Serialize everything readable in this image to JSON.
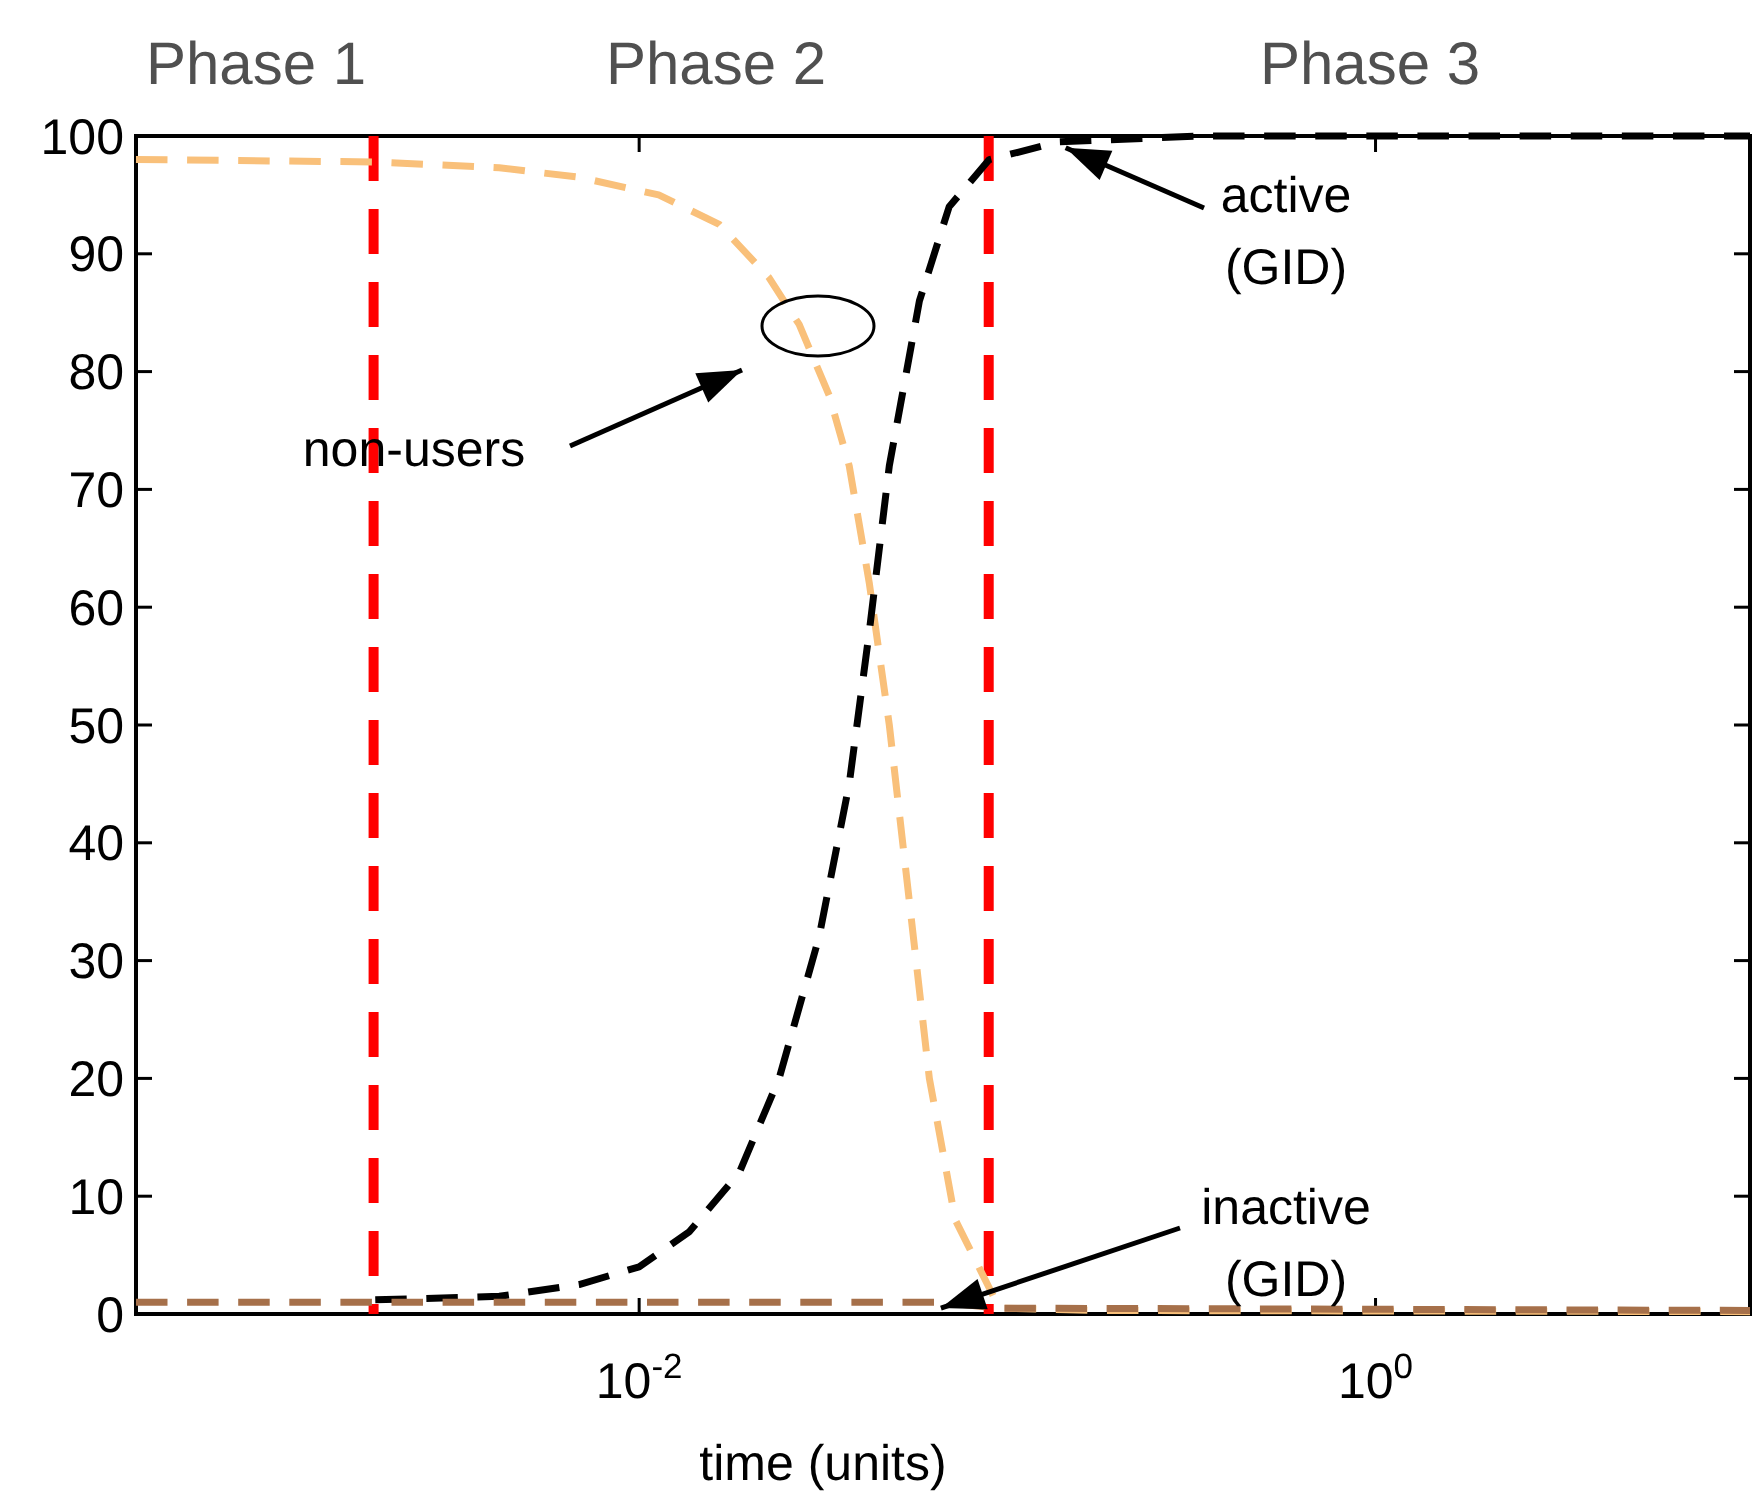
{
  "chart_data": {
    "type": "line",
    "xlabel": "time (units)",
    "log": "x",
    "line_style": "dashed",
    "xlim": [
      0.00043,
      10.4
    ],
    "ylim": [
      0,
      100
    ],
    "xticks": [
      {
        "value": 0.01,
        "label": "10$^{-2}$"
      },
      {
        "value": 1,
        "label": "10$^{0}$"
      }
    ],
    "yticks": [
      0,
      10,
      20,
      30,
      40,
      50,
      60,
      70,
      80,
      90,
      100
    ],
    "series": [
      {
        "color": "#f9c07a",
        "x": [
          0.00043,
          0.00192,
          0.00417,
          0.00687,
          0.0113,
          0.0165,
          0.0225,
          0.0272,
          0.0328,
          0.0372,
          0.0422,
          0.0478,
          0.0542,
          0.0614,
          0.0722,
          0.0951,
          0.178,
          10.4
        ],
        "values": [
          98,
          97.8,
          97.3,
          96.5,
          95,
          92.5,
          88,
          84,
          78,
          72,
          62,
          50,
          35,
          20,
          8,
          0.5,
          0.3,
          0.2
        ]
      },
      {
        "color": "#000000",
        "x": [
          0.00192,
          0.00417,
          0.00687,
          0.01,
          0.0137,
          0.0187,
          0.024,
          0.0308,
          0.0372,
          0.0422,
          0.0478,
          0.0577,
          0.0695,
          0.0893,
          0.138,
          0.332,
          10.4
        ],
        "values": [
          1.2,
          1.5,
          2.5,
          4,
          7,
          12,
          20,
          32,
          45,
          58,
          72,
          86,
          94,
          98,
          99.5,
          100,
          100
        ]
      },
      {
        "color": "#a6704a",
        "x": [
          0.00043,
          0.0654,
          0.0951,
          10.4
        ],
        "values": [
          1,
          1,
          0.5,
          0.3
        ]
      }
    ],
    "ref_lines": [
      {
        "axis": "x",
        "value": 0.0019,
        "color": "#ff0000",
        "line_style": "dashed"
      },
      {
        "axis": "x",
        "value": 0.089,
        "color": "#ff0000",
        "line_style": "dashed"
      }
    ],
    "annotations": [
      "Phase 1",
      "Phase 2",
      "Phase 3",
      "non-users",
      {
        "text": "active\n(GID)",
        "x": 0.144,
        "y": 99
      },
      {
        "text": "inactive\n(GID)",
        "x": 0.066,
        "y": 0.5
      }
    ]
  }
}
